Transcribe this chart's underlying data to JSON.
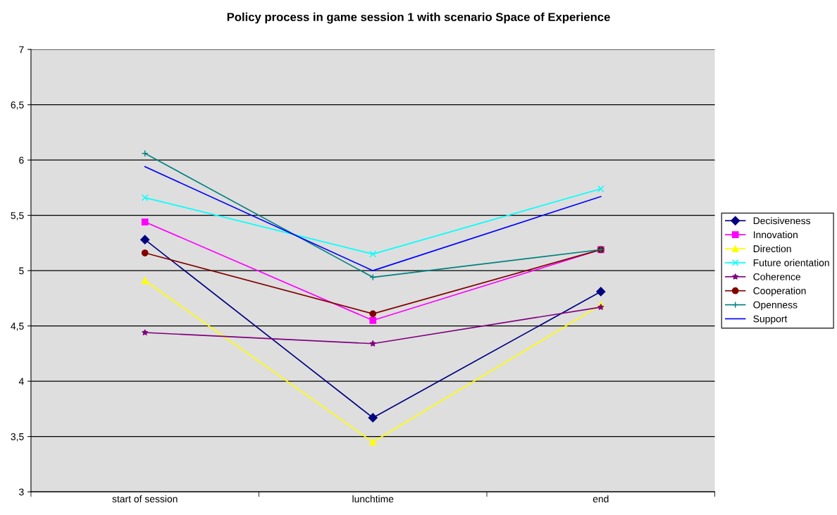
{
  "chart_data": {
    "type": "line",
    "title": "Policy process in game session 1 with scenario Space of Experience",
    "categories": [
      "start of session",
      "lunchtime",
      "end"
    ],
    "ylim": [
      3,
      7
    ],
    "yticks": [
      {
        "value": 3,
        "label": "3"
      },
      {
        "value": 3.5,
        "label": "3,5"
      },
      {
        "value": 4,
        "label": "4"
      },
      {
        "value": 4.5,
        "label": "4,5"
      },
      {
        "value": 5,
        "label": "5"
      },
      {
        "value": 5.5,
        "label": "5,5"
      },
      {
        "value": 6,
        "label": "6"
      },
      {
        "value": 6.5,
        "label": "6,5"
      },
      {
        "value": 7,
        "label": "7"
      }
    ],
    "grid": "y",
    "legend": "right",
    "series": [
      {
        "name": "Decisiveness",
        "color": "#000080",
        "marker": "diamond",
        "values": [
          5.28,
          3.67,
          4.81
        ]
      },
      {
        "name": "Innovation",
        "color": "#ff00ff",
        "marker": "square",
        "values": [
          5.44,
          4.55,
          5.19
        ]
      },
      {
        "name": "Direction",
        "color": "#ffff00",
        "marker": "triangle",
        "values": [
          4.91,
          3.45,
          4.69
        ]
      },
      {
        "name": "Future orientation",
        "color": "#00ffff",
        "marker": "cross",
        "values": [
          5.66,
          5.15,
          5.74
        ]
      },
      {
        "name": "Coherence",
        "color": "#800080",
        "marker": "star",
        "values": [
          4.44,
          4.34,
          4.67
        ]
      },
      {
        "name": "Cooperation",
        "color": "#800000",
        "marker": "circle",
        "values": [
          5.16,
          4.61,
          5.19
        ]
      },
      {
        "name": "Openness",
        "color": "#008080",
        "marker": "plus",
        "values": [
          6.06,
          4.94,
          5.19
        ]
      },
      {
        "name": "Support",
        "color": "#0000ff",
        "marker": "none",
        "values": [
          5.94,
          5.0,
          5.67
        ]
      }
    ]
  }
}
